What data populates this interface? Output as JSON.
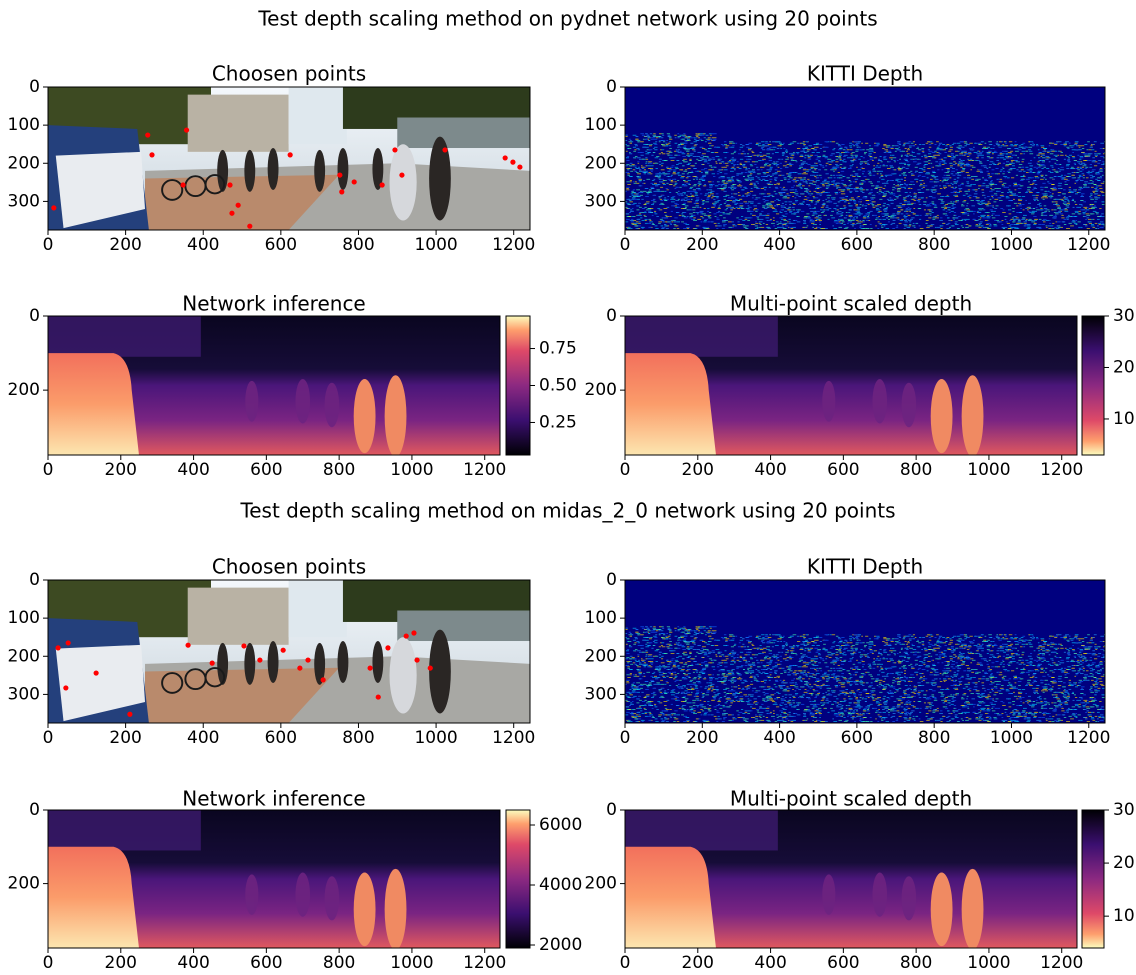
{
  "suptitles": [
    "Test depth scaling method on pydnet network using 20 points",
    "Test depth scaling method on midas_2_0 network using 20 points"
  ],
  "chart_data": [
    {
      "type": "scatter",
      "title": "Choosen points",
      "xlim": [
        0,
        1242
      ],
      "ylim": [
        375,
        0
      ],
      "xticks": [
        0,
        200,
        400,
        600,
        800,
        1000,
        1200
      ],
      "yticks": [
        0,
        100,
        200,
        300
      ],
      "color": "#ff0000",
      "points": {
        "x": [
          257,
          357,
          268,
          348,
          469,
          490,
          474,
          520,
          15,
          624,
          752,
          789,
          861,
          894,
          1023,
          1178,
          1198,
          1216,
          912,
          757
        ],
        "y": [
          126,
          113,
          178,
          257,
          257,
          310,
          331,
          365,
          317,
          178,
          231,
          249,
          257,
          165,
          165,
          186,
          197,
          210,
          231,
          275
        ]
      }
    },
    {
      "type": "heatmap",
      "title": "KITTI Depth",
      "colormap": "jet",
      "xlim": [
        0,
        1242
      ],
      "ylim": [
        375,
        0
      ],
      "xticks": [
        0,
        200,
        400,
        600,
        800,
        1000,
        1200
      ],
      "yticks": [
        0,
        100,
        200,
        300
      ]
    },
    {
      "type": "heatmap",
      "title": "Network inference",
      "colormap": "magma",
      "xlim": [
        0,
        1242
      ],
      "ylim": [
        375,
        0
      ],
      "xticks": [
        0,
        200,
        400,
        600,
        800,
        1000,
        1200
      ],
      "yticks": [
        0,
        200
      ],
      "clim": [
        0.03,
        0.97
      ],
      "cticks": [
        0.25,
        {
          "value": 0.5,
          "label": "0.50"
        },
        0.75
      ]
    },
    {
      "type": "heatmap",
      "title": "Multi-point scaled depth",
      "colormap": "magma_r",
      "xlim": [
        0,
        1242
      ],
      "ylim": [
        375,
        0
      ],
      "xticks": [
        0,
        200,
        400,
        600,
        800,
        1000,
        1200
      ],
      "yticks": [
        0,
        200
      ],
      "clim": [
        3,
        30
      ],
      "cticks": [
        10,
        20,
        30
      ]
    },
    {
      "type": "scatter",
      "title": "Choosen points",
      "xlim": [
        0,
        1242
      ],
      "ylim": [
        375,
        0
      ],
      "xticks": [
        0,
        200,
        400,
        600,
        800,
        1000,
        1200
      ],
      "yticks": [
        0,
        100,
        200,
        300
      ],
      "color": "#ff0000",
      "points": {
        "x": [
          26,
          52,
          46,
          124,
          211,
          361,
          423,
          505,
          546,
          606,
          649,
          709,
          670,
          830,
          851,
          876,
          923,
          951,
          985,
          943
        ],
        "y": [
          178,
          165,
          283,
          244,
          352,
          171,
          218,
          173,
          210,
          184,
          231,
          262,
          210,
          231,
          307,
          178,
          147,
          210,
          231,
          139
        ]
      }
    },
    {
      "type": "heatmap",
      "title": "KITTI Depth",
      "colormap": "jet",
      "xlim": [
        0,
        1242
      ],
      "ylim": [
        375,
        0
      ],
      "xticks": [
        0,
        200,
        400,
        600,
        800,
        1000,
        1200
      ],
      "yticks": [
        0,
        100,
        200,
        300
      ]
    },
    {
      "type": "heatmap",
      "title": "Network inference",
      "colormap": "magma",
      "xlim": [
        0,
        1242
      ],
      "ylim": [
        375,
        0
      ],
      "xticks": [
        0,
        200,
        400,
        600,
        800,
        1000,
        1200
      ],
      "yticks": [
        0,
        200
      ],
      "clim": [
        1900,
        6500
      ],
      "cticks": [
        2000,
        4000,
        6000
      ]
    },
    {
      "type": "heatmap",
      "title": "Multi-point scaled depth",
      "colormap": "magma_r",
      "xlim": [
        0,
        1242
      ],
      "ylim": [
        375,
        0
      ],
      "xticks": [
        0,
        200,
        400,
        600,
        800,
        1000,
        1200
      ],
      "yticks": [
        0,
        200
      ],
      "clim": [
        4,
        30
      ],
      "cticks": [
        10,
        20,
        30
      ]
    }
  ]
}
